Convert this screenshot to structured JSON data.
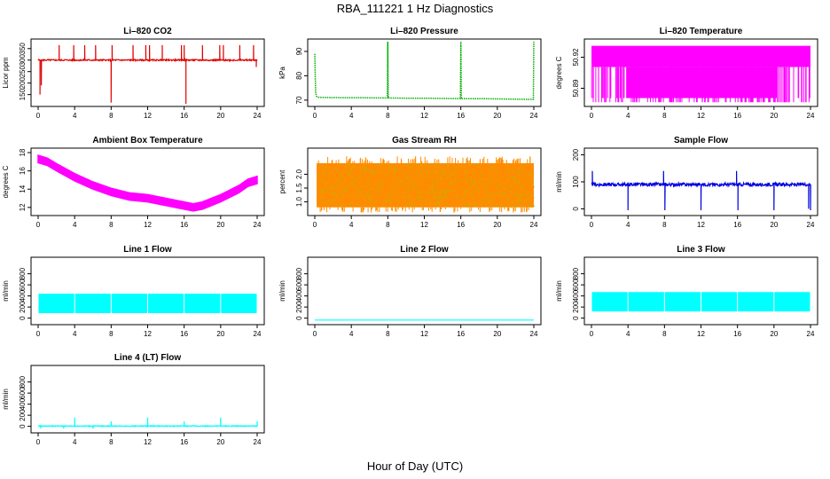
{
  "figure": {
    "title": "RBA_111221  1 Hz Diagnostics",
    "xlabel": "Hour of Day (UTC)"
  },
  "chart_data": [
    {
      "type": "line",
      "title": "Li–820 CO2",
      "ylabel": "Licor ppm",
      "color": "#e00000",
      "xlim": [
        0,
        24
      ],
      "ylim": [
        110,
        380
      ],
      "xticks": [
        0,
        4,
        8,
        12,
        16,
        20,
        24
      ],
      "yticks": [
        150,
        200,
        250,
        300,
        350
      ],
      "style": "line",
      "baseline": 300,
      "noise": 3,
      "spikes": [
        [
          0.2,
          150
        ],
        [
          0.35,
          190
        ],
        [
          2.3,
          365
        ],
        [
          3.9,
          365
        ],
        [
          5.1,
          365
        ],
        [
          6.3,
          365
        ],
        [
          8.0,
          115
        ],
        [
          8.1,
          365
        ],
        [
          10.4,
          365
        ],
        [
          11.8,
          365
        ],
        [
          12.2,
          365
        ],
        [
          13.6,
          365
        ],
        [
          15.7,
          365
        ],
        [
          16.0,
          365
        ],
        [
          16.2,
          110
        ],
        [
          18.0,
          365
        ],
        [
          19.9,
          365
        ],
        [
          20.3,
          365
        ],
        [
          22.1,
          365
        ],
        [
          23.6,
          365
        ],
        [
          23.9,
          270
        ]
      ]
    },
    {
      "type": "line",
      "title": "Li–820 Pressure",
      "ylabel": "kPa",
      "color": "#00b000",
      "xlim": [
        0,
        24
      ],
      "ylim": [
        68.5,
        94
      ],
      "xticks": [
        0,
        4,
        8,
        12,
        16,
        20,
        24
      ],
      "yticks": [
        70,
        80,
        90
      ],
      "style": "dotted",
      "x": [
        0.0,
        0.05,
        0.1,
        0.2,
        0.4,
        1,
        3,
        5,
        7,
        7.95,
        8.0,
        8.05,
        10,
        12,
        14,
        15.95,
        16.0,
        16.05,
        18,
        20,
        22,
        23.95,
        24.0
      ],
      "y": [
        89,
        80,
        73,
        71.5,
        71.2,
        71.1,
        71.0,
        71.0,
        70.9,
        70.9,
        94,
        70.9,
        70.8,
        70.8,
        70.7,
        70.6,
        94,
        70.6,
        70.6,
        70.5,
        70.4,
        70.3,
        94
      ]
    },
    {
      "type": "line",
      "title": "Li–820 Temperature",
      "ylabel": "degrees C",
      "color": "#ff00ff",
      "xlim": [
        0,
        24
      ],
      "ylim": [
        50.875,
        50.935
      ],
      "xticks": [
        0,
        4,
        8,
        12,
        16,
        20,
        24
      ],
      "yticks": [
        50.89,
        50.92
      ],
      "ytick_labels": [
        "50.89",
        "50.92"
      ],
      "style": "digital",
      "high": 50.931,
      "mid": 50.9105,
      "low": 50.8805,
      "dense_start": 3.8,
      "dense_end": 20.4,
      "spike_low": 50.8765
    },
    {
      "type": "line",
      "title": "Ambient Box Temperature",
      "ylabel": "degrees C",
      "color": "#ff00ff",
      "xlim": [
        0,
        24
      ],
      "ylim": [
        11.4,
        18.2
      ],
      "xticks": [
        0,
        4,
        8,
        12,
        16,
        20,
        24
      ],
      "yticks": [
        12,
        14,
        16,
        18
      ],
      "style": "band",
      "band": 0.8,
      "x": [
        0,
        1,
        2,
        4,
        6,
        8,
        10,
        12,
        14,
        16,
        17,
        18,
        19,
        20,
        22,
        23,
        24
      ],
      "y": [
        17.3,
        17.0,
        16.4,
        15.3,
        14.4,
        13.7,
        13.2,
        13.0,
        12.6,
        12.2,
        12.0,
        12.2,
        12.6,
        13.0,
        14.0,
        14.7,
        15.0
      ]
    },
    {
      "type": "scatter",
      "title": "Gas Stream RH",
      "ylabel": "percent",
      "color": "#ff8c00",
      "color2": "#b8b800",
      "xlim": [
        0,
        24
      ],
      "ylim": [
        0.6,
        2.85
      ],
      "xticks": [
        0,
        4,
        8,
        12,
        16,
        20,
        24
      ],
      "yticks": [
        1.0,
        1.5,
        2.0
      ],
      "ytick_labels": [
        "1.0",
        "1.5",
        "2.0"
      ],
      "style": "noise",
      "low": 0.8,
      "high": 2.4,
      "start": 0.2
    },
    {
      "type": "line",
      "title": "Sample Flow",
      "ylabel": "ml/min",
      "color": "#0000e0",
      "xlim": [
        0,
        24
      ],
      "ylim": [
        -15,
        215
      ],
      "xticks": [
        0,
        4,
        8,
        12,
        16,
        20,
        24
      ],
      "yticks": [
        0,
        100,
        200
      ],
      "style": "line",
      "baseline": 90,
      "noise": 6,
      "spikes": [
        [
          0.1,
          140
        ],
        [
          4.0,
          -5
        ],
        [
          7.9,
          140
        ],
        [
          8.05,
          -5
        ],
        [
          12.0,
          -5
        ],
        [
          15.9,
          140
        ],
        [
          16.05,
          -5
        ],
        [
          20.0,
          -5
        ],
        [
          24.0,
          -5
        ],
        [
          23.8,
          0
        ]
      ]
    },
    {
      "type": "line",
      "title": "Line 1 Flow",
      "ylabel": "ml/min",
      "color": "#00ffff",
      "xlim": [
        0,
        24
      ],
      "ylim": [
        -70,
        1050
      ],
      "xticks": [
        0,
        4,
        8,
        12,
        16,
        20,
        24
      ],
      "yticks": [
        0,
        200,
        400,
        600,
        800
      ],
      "style": "band2",
      "low": 90,
      "high": 440,
      "gaps": [
        0.0,
        4.0,
        8.0,
        12.0,
        16.0,
        20.0,
        24.0
      ]
    },
    {
      "type": "line",
      "title": "Line 2 Flow",
      "ylabel": "ml/min",
      "color": "#00ffff",
      "xlim": [
        0,
        24
      ],
      "ylim": [
        -70,
        1050
      ],
      "xticks": [
        0,
        4,
        8,
        12,
        16,
        20,
        24
      ],
      "yticks": [
        0,
        200,
        400,
        600,
        800
      ],
      "style": "flat",
      "x": [
        0,
        24
      ],
      "y": [
        -35,
        -35
      ]
    },
    {
      "type": "line",
      "title": "Line 3 Flow",
      "ylabel": "ml/min",
      "color": "#00ffff",
      "xlim": [
        0,
        24
      ],
      "ylim": [
        -70,
        1050
      ],
      "xticks": [
        0,
        4,
        8,
        12,
        16,
        20,
        24
      ],
      "yticks": [
        0,
        200,
        400,
        600,
        800
      ],
      "style": "band2",
      "low": 120,
      "high": 470,
      "gaps": [
        0.0,
        4.0,
        8.0,
        12.0,
        16.0,
        20.0,
        24.0
      ]
    },
    {
      "type": "line",
      "title": "Line 4 (LT) Flow",
      "ylabel": "ml/min",
      "color": "#00ffff",
      "xlim": [
        0,
        24
      ],
      "ylim": [
        -70,
        1050
      ],
      "xticks": [
        0,
        4,
        8,
        12,
        16,
        20,
        24
      ],
      "yticks": [
        0,
        200,
        400,
        600,
        800
      ],
      "style": "line",
      "baseline": 5,
      "noise": 8,
      "spikes": [
        [
          4.0,
          160
        ],
        [
          8.0,
          90
        ],
        [
          12.0,
          160
        ],
        [
          16.0,
          90
        ],
        [
          20.0,
          160
        ],
        [
          24.0,
          90
        ],
        [
          0.3,
          -40
        ],
        [
          2.8,
          -40
        ],
        [
          6.0,
          -40
        ]
      ]
    }
  ]
}
